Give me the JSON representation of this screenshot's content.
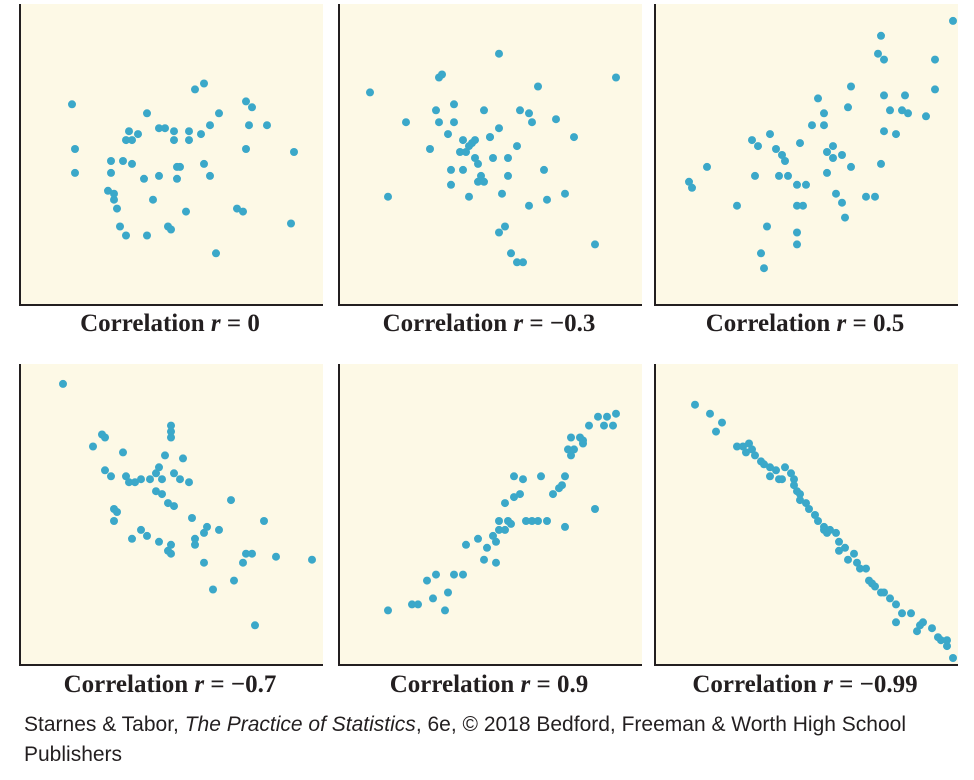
{
  "colors": {
    "panel_bg": "#fdf9e6",
    "axis": "#231f20",
    "point": "#3ba8c9"
  },
  "credit": {
    "authors": "Starnes & Tabor, ",
    "book": "The Practice of Statistics",
    "rest": ", 6e, © 2018 Bedford, Freeman & Worth High School Publishers"
  },
  "chart_data": [
    {
      "type": "scatter",
      "label": "Correlation",
      "r_symbol": "r",
      "equals": " = ",
      "r_text": "0",
      "xlim": [
        0,
        100
      ],
      "ylim": [
        0,
        100
      ],
      "grid": false,
      "points": [
        [
          17,
          67
        ],
        [
          18,
          52
        ],
        [
          18,
          44
        ],
        [
          29,
          38
        ],
        [
          31,
          37
        ],
        [
          33,
          26
        ],
        [
          32,
          32
        ],
        [
          35,
          23
        ],
        [
          30,
          44
        ],
        [
          30,
          48
        ],
        [
          34,
          48
        ],
        [
          31,
          35
        ],
        [
          36,
          58
        ],
        [
          35,
          55
        ],
        [
          37,
          55
        ],
        [
          37,
          47
        ],
        [
          39,
          57
        ],
        [
          41,
          42
        ],
        [
          42,
          23
        ],
        [
          42,
          64
        ],
        [
          44,
          35
        ],
        [
          46,
          43
        ],
        [
          46,
          59
        ],
        [
          48,
          59
        ],
        [
          49,
          26
        ],
        [
          50,
          25
        ],
        [
          51,
          58
        ],
        [
          52,
          46
        ],
        [
          52,
          42
        ],
        [
          51,
          55
        ],
        [
          53,
          46
        ],
        [
          55,
          31
        ],
        [
          56,
          58
        ],
        [
          56,
          55
        ],
        [
          58,
          72
        ],
        [
          61,
          74
        ],
        [
          61,
          47
        ],
        [
          60,
          57
        ],
        [
          63,
          43
        ],
        [
          63,
          60
        ],
        [
          65,
          17
        ],
        [
          66,
          64
        ],
        [
          72,
          32
        ],
        [
          74,
          31
        ],
        [
          75,
          52
        ],
        [
          75,
          68
        ],
        [
          77,
          66
        ],
        [
          76,
          60
        ],
        [
          82,
          60
        ],
        [
          91,
          51
        ],
        [
          90,
          27
        ]
      ]
    },
    {
      "type": "scatter",
      "label": "Correlation",
      "r_symbol": "r",
      "equals": " = ",
      "r_text": "−0.3",
      "xlim": [
        0,
        100
      ],
      "ylim": [
        0,
        100
      ],
      "grid": false,
      "points": [
        [
          10,
          71
        ],
        [
          16,
          36
        ],
        [
          22,
          61
        ],
        [
          30,
          52
        ],
        [
          33,
          76
        ],
        [
          34,
          77
        ],
        [
          32,
          65
        ],
        [
          33,
          61
        ],
        [
          36,
          57
        ],
        [
          37,
          45
        ],
        [
          37,
          40
        ],
        [
          38,
          67
        ],
        [
          38,
          61
        ],
        [
          40,
          51
        ],
        [
          41,
          55
        ],
        [
          41,
          45
        ],
        [
          42,
          51
        ],
        [
          43,
          36
        ],
        [
          43,
          53
        ],
        [
          44,
          54
        ],
        [
          45,
          55
        ],
        [
          45,
          49
        ],
        [
          46,
          47
        ],
        [
          46,
          41
        ],
        [
          47,
          43
        ],
        [
          48,
          41
        ],
        [
          48,
          65
        ],
        [
          50,
          56
        ],
        [
          50,
          56
        ],
        [
          51,
          49
        ],
        [
          53,
          24
        ],
        [
          53,
          59
        ],
        [
          54,
          37
        ],
        [
          55,
          26
        ],
        [
          56,
          49
        ],
        [
          56,
          43
        ],
        [
          57,
          17
        ],
        [
          59,
          14
        ],
        [
          61,
          14
        ],
        [
          59,
          53
        ],
        [
          60,
          65
        ],
        [
          63,
          64
        ],
        [
          64,
          61
        ],
        [
          66,
          73
        ],
        [
          63,
          33
        ],
        [
          68,
          45
        ],
        [
          69,
          35
        ],
        [
          72,
          62
        ],
        [
          75,
          37
        ],
        [
          78,
          56
        ],
        [
          85,
          20
        ],
        [
          92,
          76
        ],
        [
          53,
          84
        ]
      ]
    },
    {
      "type": "scatter",
      "label": "Correlation",
      "r_symbol": "r",
      "equals": " = ",
      "r_text": "0.5",
      "xlim": [
        0,
        100
      ],
      "ylim": [
        0,
        100
      ],
      "grid": false,
      "points": [
        [
          11,
          41
        ],
        [
          12,
          39
        ],
        [
          17,
          46
        ],
        [
          27,
          33
        ],
        [
          32,
          55
        ],
        [
          35,
          17
        ],
        [
          36,
          12
        ],
        [
          37,
          26
        ],
        [
          33,
          43
        ],
        [
          34,
          53
        ],
        [
          38,
          57
        ],
        [
          40,
          52
        ],
        [
          41,
          43
        ],
        [
          42,
          50
        ],
        [
          43,
          48
        ],
        [
          44,
          43
        ],
        [
          47,
          40
        ],
        [
          47,
          33
        ],
        [
          47,
          20
        ],
        [
          47,
          24
        ],
        [
          48,
          54
        ],
        [
          49,
          33
        ],
        [
          50,
          40
        ],
        [
          52,
          60
        ],
        [
          54,
          69
        ],
        [
          56,
          64
        ],
        [
          56,
          60
        ],
        [
          57,
          51
        ],
        [
          57,
          44
        ],
        [
          59,
          49
        ],
        [
          59,
          53
        ],
        [
          60,
          37
        ],
        [
          62,
          50
        ],
        [
          62,
          34
        ],
        [
          64,
          66
        ],
        [
          63,
          29
        ],
        [
          65,
          46
        ],
        [
          65,
          73
        ],
        [
          70,
          36
        ],
        [
          73,
          36
        ],
        [
          74,
          84
        ],
        [
          75,
          47
        ],
        [
          76,
          58
        ],
        [
          76,
          82
        ],
        [
          78,
          65
        ],
        [
          76,
          70
        ],
        [
          80,
          57
        ],
        [
          82,
          65
        ],
        [
          83,
          70
        ],
        [
          84,
          64
        ],
        [
          75,
          90
        ],
        [
          90,
          63
        ],
        [
          93,
          82
        ],
        [
          93,
          72
        ],
        [
          99,
          95
        ]
      ]
    },
    {
      "type": "scatter",
      "label": "Correlation",
      "r_symbol": "r",
      "equals": " = ",
      "r_text": "−0.7",
      "xlim": [
        0,
        100
      ],
      "ylim": [
        0,
        100
      ],
      "grid": false,
      "points": [
        [
          14,
          94
        ],
        [
          24,
          73
        ],
        [
          27,
          77
        ],
        [
          28,
          76
        ],
        [
          30,
          63
        ],
        [
          28,
          65
        ],
        [
          31,
          52
        ],
        [
          31,
          48
        ],
        [
          32,
          51
        ],
        [
          34,
          71
        ],
        [
          35,
          63
        ],
        [
          36,
          61
        ],
        [
          37,
          42
        ],
        [
          38,
          61
        ],
        [
          40,
          62
        ],
        [
          40,
          45
        ],
        [
          42,
          43
        ],
        [
          43,
          62
        ],
        [
          45,
          58
        ],
        [
          45,
          64
        ],
        [
          46,
          66
        ],
        [
          46,
          41
        ],
        [
          47,
          62
        ],
        [
          47,
          57
        ],
        [
          49,
          54
        ],
        [
          50,
          40
        ],
        [
          50,
          37
        ],
        [
          49,
          38
        ],
        [
          48,
          70
        ],
        [
          51,
          53
        ],
        [
          51,
          64
        ],
        [
          53,
          62
        ],
        [
          54,
          69
        ],
        [
          56,
          61
        ],
        [
          57,
          49
        ],
        [
          58,
          40
        ],
        [
          58,
          42
        ],
        [
          61,
          44
        ],
        [
          61,
          34
        ],
        [
          62,
          46
        ],
        [
          64,
          25
        ],
        [
          66,
          45
        ],
        [
          70,
          55
        ],
        [
          71,
          28
        ],
        [
          74,
          34
        ],
        [
          75,
          37
        ],
        [
          77,
          37
        ],
        [
          78,
          13
        ],
        [
          81,
          48
        ],
        [
          85,
          36
        ],
        [
          97,
          35
        ],
        [
          50,
          76
        ],
        [
          50,
          78
        ],
        [
          50,
          80
        ]
      ]
    },
    {
      "type": "scatter",
      "label": "Correlation",
      "r_symbol": "r",
      "equals": " = ",
      "r_text": "0.9",
      "xlim": [
        0,
        100
      ],
      "ylim": [
        0,
        100
      ],
      "grid": false,
      "points": [
        [
          16,
          18
        ],
        [
          24,
          20
        ],
        [
          26,
          20
        ],
        [
          29,
          28
        ],
        [
          31,
          22
        ],
        [
          32,
          30
        ],
        [
          35,
          18
        ],
        [
          36,
          24
        ],
        [
          38,
          30
        ],
        [
          41,
          30
        ],
        [
          42,
          40
        ],
        [
          46,
          42
        ],
        [
          48,
          35
        ],
        [
          49,
          39
        ],
        [
          51,
          43
        ],
        [
          52,
          41
        ],
        [
          52,
          34
        ],
        [
          53,
          45
        ],
        [
          53,
          48
        ],
        [
          55,
          45
        ],
        [
          55,
          54
        ],
        [
          56,
          48
        ],
        [
          57,
          47
        ],
        [
          58,
          63
        ],
        [
          58,
          56
        ],
        [
          60,
          57
        ],
        [
          61,
          62
        ],
        [
          62,
          48
        ],
        [
          64,
          48
        ],
        [
          66,
          48
        ],
        [
          67,
          63
        ],
        [
          69,
          48
        ],
        [
          71,
          57
        ],
        [
          73,
          59
        ],
        [
          74,
          60
        ],
        [
          75,
          63
        ],
        [
          75,
          46
        ],
        [
          76,
          72
        ],
        [
          77,
          76
        ],
        [
          77,
          70
        ],
        [
          78,
          72
        ],
        [
          80,
          76
        ],
        [
          81,
          74
        ],
        [
          81,
          75
        ],
        [
          83,
          80
        ],
        [
          85,
          52
        ],
        [
          86,
          83
        ],
        [
          88,
          80
        ],
        [
          89,
          83
        ],
        [
          91,
          80
        ],
        [
          92,
          84
        ]
      ]
    },
    {
      "type": "scatter",
      "label": "Correlation",
      "r_symbol": "r",
      "equals": " = ",
      "r_text": "−0.99",
      "xlim": [
        0,
        100
      ],
      "ylim": [
        0,
        100
      ],
      "grid": false,
      "points": [
        [
          13,
          87
        ],
        [
          18,
          84
        ],
        [
          20,
          78
        ],
        [
          22,
          81
        ],
        [
          27,
          73
        ],
        [
          29,
          73
        ],
        [
          30,
          71
        ],
        [
          31,
          74
        ],
        [
          32,
          72
        ],
        [
          33,
          70
        ],
        [
          35,
          68
        ],
        [
          36,
          67
        ],
        [
          38,
          66
        ],
        [
          38,
          63
        ],
        [
          40,
          65
        ],
        [
          41,
          62
        ],
        [
          42,
          62
        ],
        [
          43,
          66
        ],
        [
          45,
          64
        ],
        [
          46,
          62
        ],
        [
          46,
          60
        ],
        [
          47,
          58
        ],
        [
          48,
          57
        ],
        [
          48,
          55
        ],
        [
          50,
          54
        ],
        [
          51,
          52
        ],
        [
          53,
          50
        ],
        [
          54,
          48
        ],
        [
          56,
          46
        ],
        [
          56,
          45
        ],
        [
          57,
          44
        ],
        [
          58,
          45
        ],
        [
          60,
          44
        ],
        [
          61,
          41
        ],
        [
          61,
          38
        ],
        [
          63,
          39
        ],
        [
          64,
          35
        ],
        [
          66,
          37
        ],
        [
          67,
          34
        ],
        [
          68,
          32
        ],
        [
          70,
          32
        ],
        [
          71,
          28
        ],
        [
          72,
          27
        ],
        [
          73,
          26
        ],
        [
          75,
          24
        ],
        [
          76,
          24
        ],
        [
          78,
          22
        ],
        [
          80,
          20
        ],
        [
          82,
          17
        ],
        [
          85,
          17
        ],
        [
          89,
          14
        ],
        [
          92,
          12
        ],
        [
          95,
          8
        ],
        [
          97,
          6
        ],
        [
          103,
          2
        ],
        [
          97,
          8
        ],
        [
          80,
          14
        ],
        [
          87,
          11
        ],
        [
          88,
          13
        ],
        [
          94,
          9
        ]
      ]
    }
  ]
}
